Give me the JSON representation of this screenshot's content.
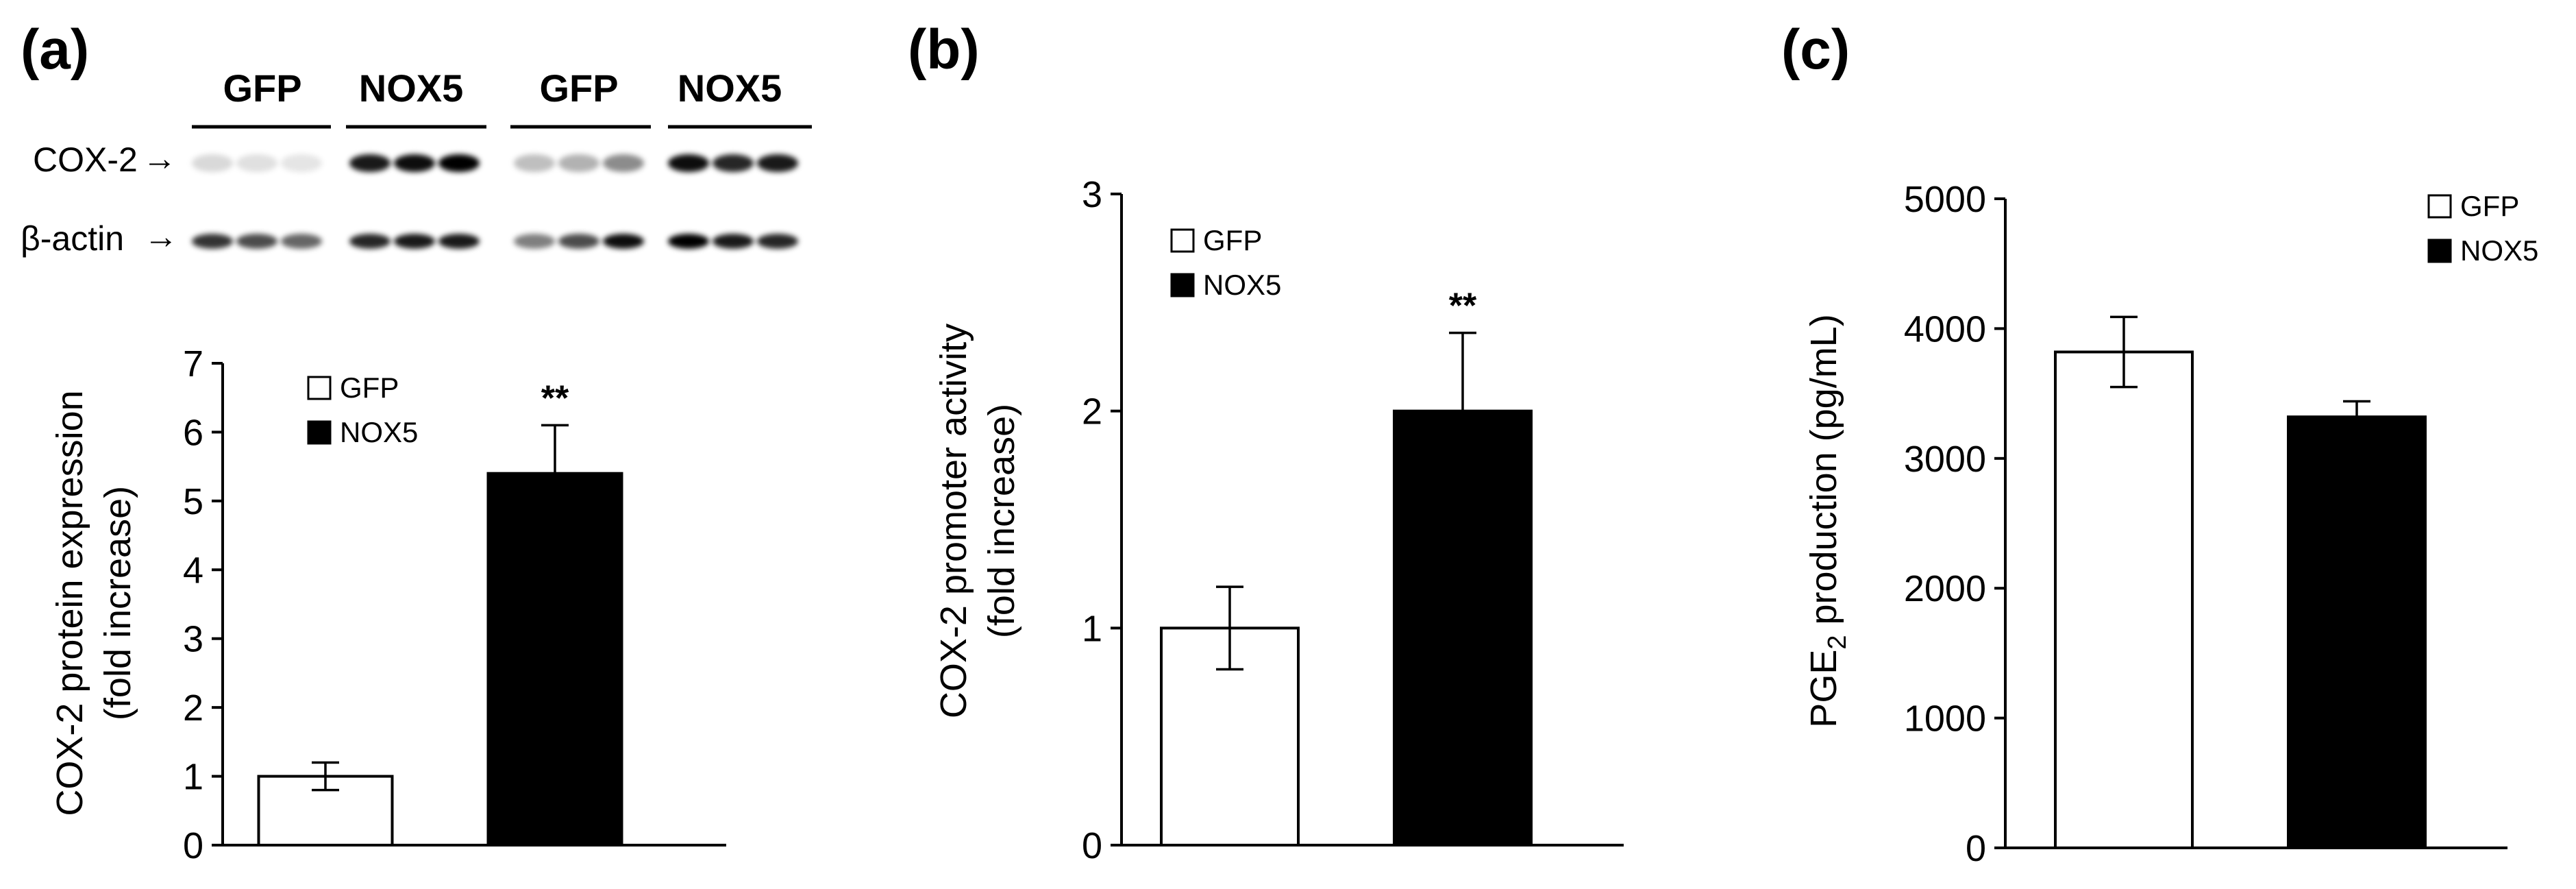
{
  "panels": [
    {
      "letter": "(a)"
    },
    {
      "letter": "(b)"
    },
    {
      "letter": "(c)"
    }
  ],
  "blot": {
    "group_labels": [
      "GFP",
      "NOX5",
      "GFP",
      "NOX5"
    ],
    "row_labels": [
      "COX-2",
      "β-actin"
    ],
    "arrow_glyph": "→"
  },
  "legend_swatch_colors": {
    "GFP": "#ffffff",
    "NOX5": "#000000"
  },
  "chart_data": [
    {
      "type": "bar",
      "categories": [
        "GFP",
        "NOX5"
      ],
      "values": [
        1.0,
        5.4
      ],
      "errors": [
        0.2,
        0.7
      ],
      "fills": [
        "#ffffff",
        "#000000"
      ],
      "ylim": [
        0,
        7
      ],
      "yticks": [
        0,
        1,
        2,
        3,
        4,
        5,
        6,
        7
      ],
      "ylabel_lines": [
        "COX-2 protein expression",
        "(fold increase)"
      ],
      "significance": [
        "",
        "**"
      ],
      "legend": [
        {
          "label": "GFP",
          "fill": "#ffffff"
        },
        {
          "label": "NOX5",
          "fill": "#000000"
        }
      ],
      "legend_placement": "top-left",
      "grid": false
    },
    {
      "type": "bar",
      "categories": [
        "GFP",
        "NOX5"
      ],
      "values": [
        1.0,
        2.0
      ],
      "errors": [
        0.19,
        0.36
      ],
      "fills": [
        "#ffffff",
        "#000000"
      ],
      "ylim": [
        0,
        3
      ],
      "yticks": [
        0,
        1,
        2,
        3
      ],
      "ylabel_lines": [
        "COX-2 promoter activity",
        "(fold increase)"
      ],
      "significance": [
        "",
        "**"
      ],
      "legend": [
        {
          "label": "GFP",
          "fill": "#ffffff"
        },
        {
          "label": "NOX5",
          "fill": "#000000"
        }
      ],
      "legend_placement": "top-left",
      "grid": false
    },
    {
      "type": "bar",
      "categories": [
        "GFP",
        "NOX5"
      ],
      "values": [
        3820,
        3320
      ],
      "errors": [
        270,
        120
      ],
      "fills": [
        "#ffffff",
        "#000000"
      ],
      "ylim": [
        0,
        5000
      ],
      "yticks": [
        0,
        1000,
        2000,
        3000,
        4000,
        5000
      ],
      "ylabel_parts": {
        "main": "PGE",
        "sub": "2",
        "rest": " production (pg/mL)"
      },
      "significance": [
        "",
        ""
      ],
      "legend": [
        {
          "label": "GFP",
          "fill": "#ffffff"
        },
        {
          "label": "NOX5",
          "fill": "#000000"
        }
      ],
      "legend_placement": "top-right",
      "grid": false
    }
  ]
}
